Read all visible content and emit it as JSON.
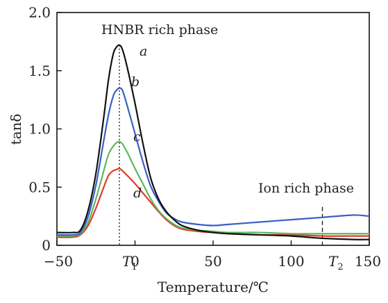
{
  "chart_data": {
    "type": "line",
    "xlabel": "Temperature/℃",
    "ylabel": "tanδ",
    "xlim": [
      -50,
      150
    ],
    "ylim": [
      0,
      2.0
    ],
    "xticks": [
      -50,
      0,
      50,
      100,
      150
    ],
    "yticks": [
      0,
      0.5,
      1.0,
      1.5,
      2.0
    ],
    "x_tick_labels": [
      "−50",
      "0",
      "50",
      "100",
      "150"
    ],
    "y_tick_labels": [
      "0",
      "0.5",
      "1.0",
      "1.5",
      "2.0"
    ],
    "grid": false,
    "annotations": {
      "hnbr": "HNBR rich phase",
      "ion": "Ion rich phase",
      "t1_main": "T",
      "t1_sub": "1",
      "t2_main": "T",
      "t2_sub": "2"
    },
    "markers": {
      "t1": -10,
      "t2": 120
    },
    "series": [
      {
        "name": "a",
        "color": "#111111",
        "x": [
          -50,
          -40,
          -35,
          -30,
          -25,
          -20,
          -17,
          -14,
          -12,
          -10,
          -8,
          -5,
          0,
          5,
          10,
          15,
          20,
          25,
          30,
          40,
          50,
          60,
          80,
          100,
          110,
          120,
          140,
          150
        ],
        "y": [
          0.11,
          0.11,
          0.13,
          0.3,
          0.62,
          1.1,
          1.42,
          1.64,
          1.7,
          1.72,
          1.68,
          1.53,
          1.22,
          0.88,
          0.58,
          0.4,
          0.29,
          0.22,
          0.17,
          0.13,
          0.11,
          0.1,
          0.09,
          0.08,
          0.07,
          0.06,
          0.05,
          0.05
        ]
      },
      {
        "name": "b",
        "color": "#3a5fc4",
        "x": [
          -50,
          -40,
          -35,
          -30,
          -25,
          -20,
          -17,
          -14,
          -12,
          -10,
          -8,
          -5,
          0,
          5,
          10,
          15,
          20,
          25,
          30,
          40,
          50,
          60,
          80,
          100,
          120,
          140,
          150
        ],
        "y": [
          0.09,
          0.09,
          0.11,
          0.25,
          0.52,
          0.9,
          1.12,
          1.28,
          1.33,
          1.35,
          1.33,
          1.2,
          0.96,
          0.72,
          0.51,
          0.38,
          0.28,
          0.23,
          0.2,
          0.18,
          0.17,
          0.18,
          0.2,
          0.22,
          0.24,
          0.26,
          0.25
        ]
      },
      {
        "name": "c",
        "color": "#5cb85c",
        "x": [
          -50,
          -40,
          -35,
          -30,
          -25,
          -20,
          -17,
          -14,
          -12,
          -10,
          -8,
          -5,
          0,
          5,
          10,
          15,
          20,
          25,
          30,
          40,
          50,
          60,
          80,
          100,
          120,
          140,
          150
        ],
        "y": [
          0.08,
          0.08,
          0.1,
          0.2,
          0.4,
          0.64,
          0.78,
          0.85,
          0.88,
          0.89,
          0.87,
          0.8,
          0.66,
          0.53,
          0.4,
          0.3,
          0.23,
          0.18,
          0.15,
          0.13,
          0.12,
          0.11,
          0.11,
          0.1,
          0.1,
          0.1,
          0.1
        ]
      },
      {
        "name": "d",
        "color": "#e03a2a",
        "x": [
          -50,
          -40,
          -35,
          -30,
          -25,
          -20,
          -17,
          -14,
          -12,
          -10,
          -8,
          -5,
          0,
          5,
          10,
          15,
          20,
          25,
          30,
          40,
          50,
          60,
          80,
          100,
          120,
          140,
          150
        ],
        "y": [
          0.07,
          0.07,
          0.09,
          0.17,
          0.32,
          0.5,
          0.6,
          0.64,
          0.65,
          0.66,
          0.64,
          0.6,
          0.53,
          0.45,
          0.37,
          0.29,
          0.22,
          0.17,
          0.14,
          0.12,
          0.11,
          0.1,
          0.09,
          0.09,
          0.08,
          0.08,
          0.08
        ]
      }
    ]
  }
}
